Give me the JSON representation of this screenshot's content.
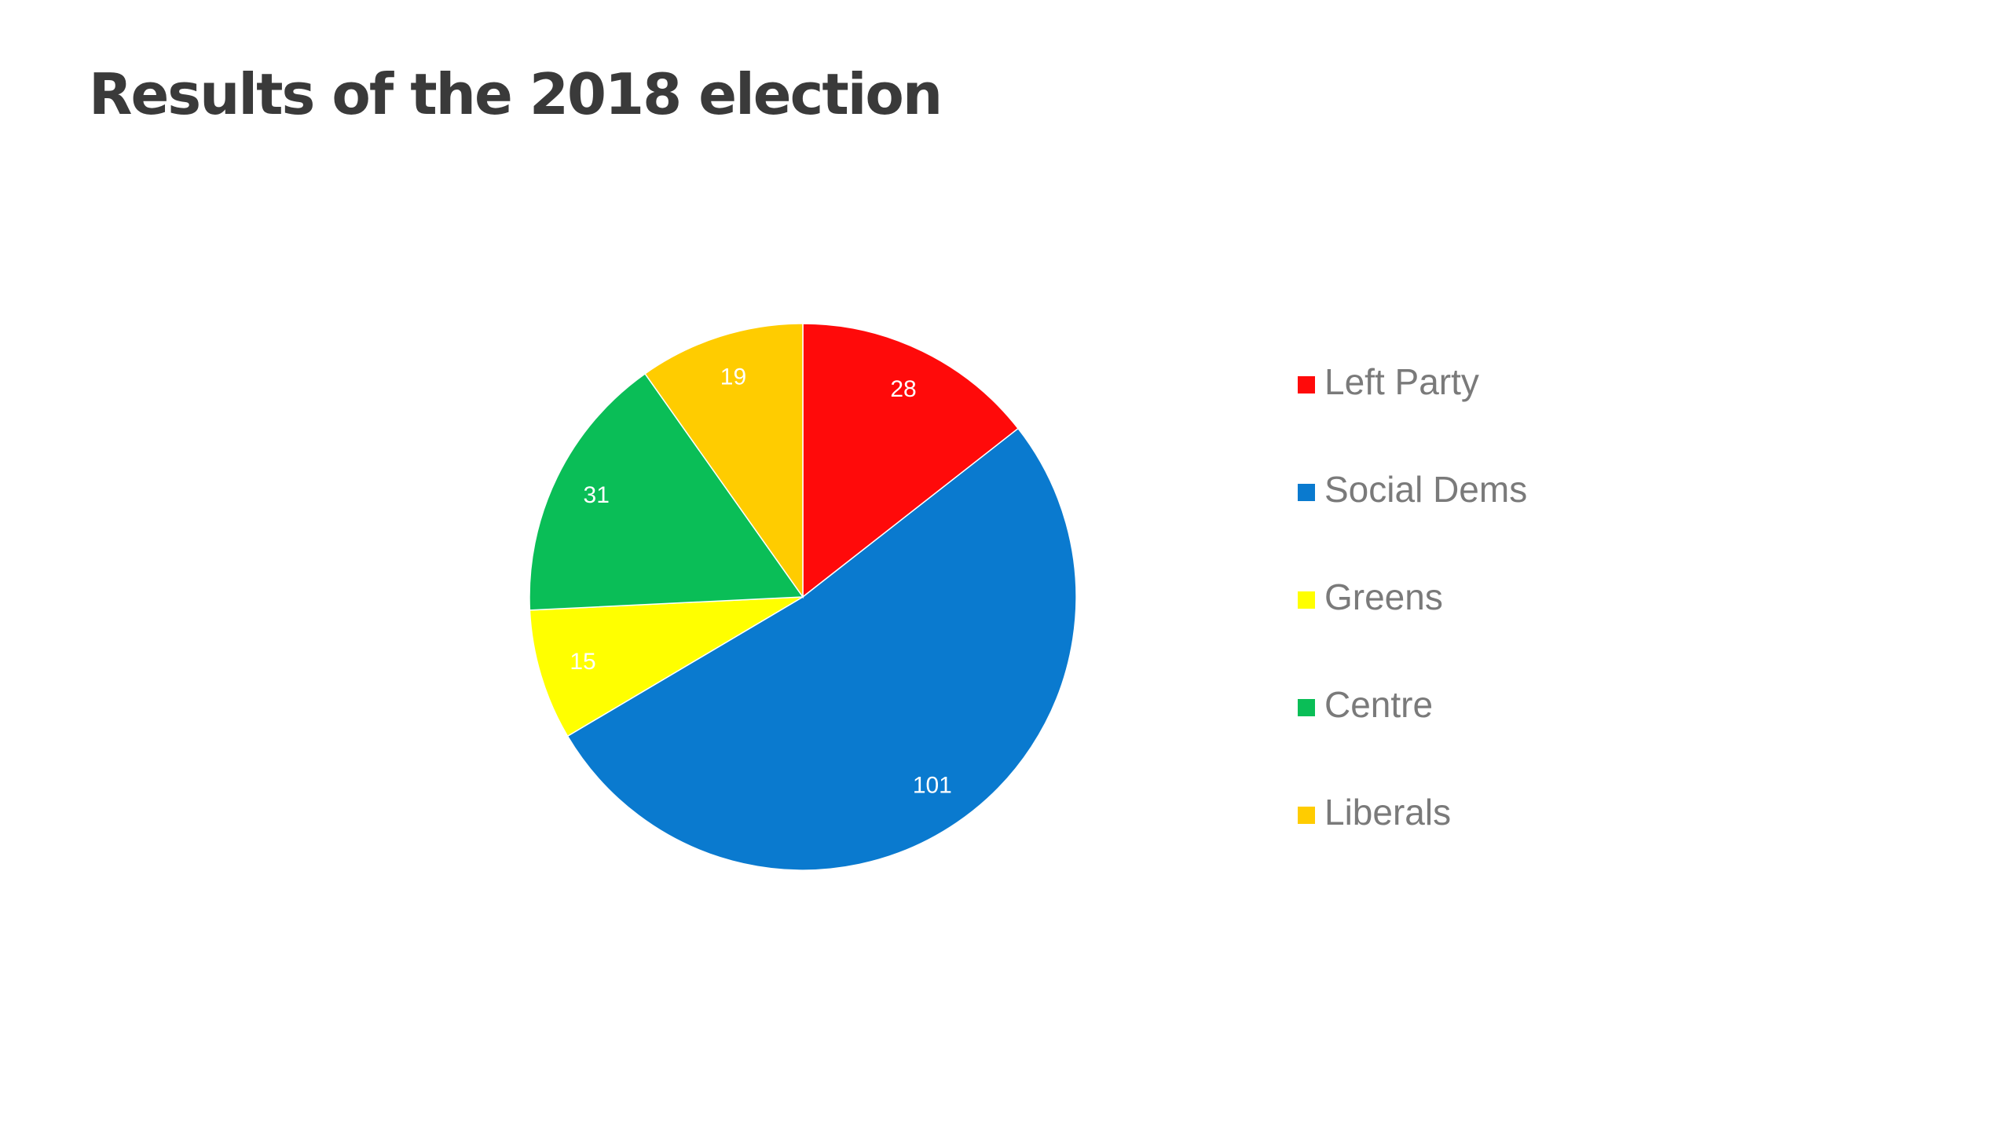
{
  "slide": {
    "title": "Results of the 2018 election"
  },
  "chart_data": {
    "type": "pie",
    "title": "",
    "legend_position": "right",
    "slices": [
      {
        "label": "Left Party",
        "value": 28,
        "color": "#ff0a0a"
      },
      {
        "label": "Social Dems",
        "value": 101,
        "color": "#0a7acf"
      },
      {
        "label": "Greens",
        "value": 15,
        "color": "#ffff00"
      },
      {
        "label": "Centre",
        "value": 31,
        "color": "#0abe57"
      },
      {
        "label": "Liberals",
        "value": 19,
        "color": "#ffcc00"
      }
    ]
  }
}
